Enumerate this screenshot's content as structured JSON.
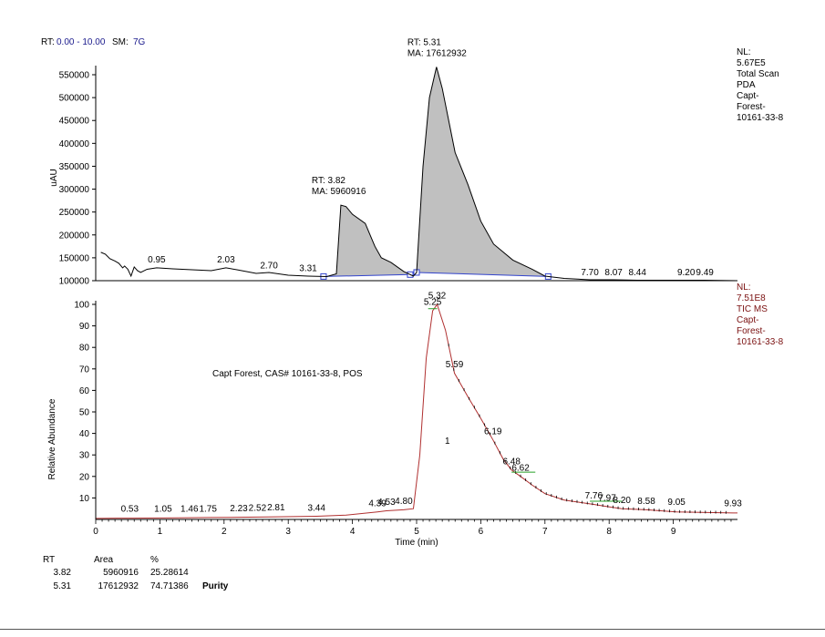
{
  "header": {
    "rt_label": "RT:",
    "rt_range": "0.00 - 10.00",
    "sm_label": "SM:",
    "sm_value": "7G"
  },
  "colors": {
    "range_text": "#1a1a8c",
    "baseline": "#3344cc",
    "peak_fill": "#c0c0c0",
    "tic_trace": "#b03030",
    "tic_text": "#7a1010",
    "hatch": "#28a028"
  },
  "chart_data": [
    {
      "type": "area",
      "title": "",
      "xlabel": "",
      "ylabel": "uAU",
      "xlim": [
        0,
        10
      ],
      "ylim": [
        100000,
        550000
      ],
      "y_ticks": [
        "100000",
        "150000",
        "200000",
        "250000",
        "300000",
        "350000",
        "400000",
        "450000",
        "500000",
        "550000"
      ],
      "legend": [
        "NL:",
        "5.67E5",
        "Total Scan",
        "PDA",
        "Capt-",
        "Forest-",
        "10161-33-8"
      ],
      "series": [
        {
          "values": [
            [
              0.08,
              162000
            ],
            [
              0.15,
              158000
            ],
            [
              0.22,
              148000
            ],
            [
              0.3,
              143000
            ],
            [
              0.36,
              138000
            ],
            [
              0.42,
              128000
            ],
            [
              0.45,
              132000
            ],
            [
              0.5,
              125000
            ],
            [
              0.55,
              110000
            ],
            [
              0.6,
              130000
            ],
            [
              0.65,
              122000
            ],
            [
              0.7,
              118000
            ],
            [
              0.8,
              125000
            ],
            [
              0.95,
              128000
            ],
            [
              1.2,
              126000
            ],
            [
              1.5,
              124000
            ],
            [
              1.8,
              122000
            ],
            [
              2.03,
              128000
            ],
            [
              2.2,
              124000
            ],
            [
              2.5,
              116000
            ],
            [
              2.7,
              118000
            ],
            [
              3.0,
              112000
            ],
            [
              3.31,
              110000
            ],
            [
              3.6,
              109000
            ],
            [
              3.75,
              115000
            ],
            [
              3.82,
              265000
            ],
            [
              3.9,
              262000
            ],
            [
              4.0,
              245000
            ],
            [
              4.2,
              225000
            ],
            [
              4.35,
              175000
            ],
            [
              4.45,
              150000
            ],
            [
              4.6,
              140000
            ],
            [
              4.8,
              120000
            ],
            [
              4.95,
              110000
            ],
            [
              5.0,
              118000
            ],
            [
              5.1,
              350000
            ],
            [
              5.2,
              500000
            ],
            [
              5.31,
              567000
            ],
            [
              5.4,
              520000
            ],
            [
              5.6,
              380000
            ],
            [
              5.8,
              310000
            ],
            [
              6.0,
              230000
            ],
            [
              6.2,
              180000
            ],
            [
              6.5,
              145000
            ],
            [
              6.8,
              125000
            ],
            [
              7.0,
              110000
            ],
            [
              7.3,
              105000
            ],
            [
              7.7,
              102000
            ],
            [
              8.07,
              102000
            ],
            [
              8.44,
              101000
            ],
            [
              9.2,
              101000
            ],
            [
              9.49,
              101000
            ],
            [
              10.0,
              100000
            ]
          ]
        }
      ],
      "peak_labels": [
        {
          "x": 0.95,
          "y": 132000,
          "text": "0.95"
        },
        {
          "x": 2.03,
          "y": 132000,
          "text": "2.03"
        },
        {
          "x": 2.7,
          "y": 119000,
          "text": "2.70"
        },
        {
          "x": 3.31,
          "y": 113000,
          "text": "3.31"
        },
        {
          "x": 7.7,
          "y": 104000,
          "text": "7.70"
        },
        {
          "x": 8.07,
          "y": 104000,
          "text": "8.07"
        },
        {
          "x": 8.44,
          "y": 104000,
          "text": "8.44"
        },
        {
          "x": 9.2,
          "y": 104000,
          "text": "9.20"
        },
        {
          "x": 9.49,
          "y": 104000,
          "text": "9.49"
        }
      ],
      "integrated_peaks": [
        {
          "start": 3.55,
          "end": 4.9,
          "apex": 3.82,
          "rt_label": "RT: 3.82",
          "ma_label": "MA: 5960916"
        },
        {
          "start": 5.0,
          "end": 7.05,
          "apex": 5.31,
          "rt_label": "RT: 5.31",
          "ma_label": "MA: 17612932"
        }
      ]
    },
    {
      "type": "line",
      "title": "Capt Forest, CAS# 10161-33-8, POS",
      "xlabel": "Time (min)",
      "ylabel": "Relative Abundance",
      "xlim": [
        0,
        10
      ],
      "ylim": [
        0,
        100
      ],
      "x_ticks": [
        "0",
        "1",
        "2",
        "3",
        "4",
        "5",
        "6",
        "7",
        "8",
        "9"
      ],
      "y_ticks": [
        "10",
        "20",
        "30",
        "40",
        "50",
        "60",
        "70",
        "80",
        "90",
        "100"
      ],
      "legend": [
        "NL:",
        "7.51E8",
        "TIC  MS",
        "Capt-",
        "Forest-",
        "10161-33-8"
      ],
      "annotation": "1",
      "series": [
        {
          "values": [
            [
              0,
              0.5
            ],
            [
              0.53,
              0.6
            ],
            [
              1.05,
              0.7
            ],
            [
              1.46,
              0.8
            ],
            [
              1.75,
              0.9
            ],
            [
              2.23,
              1.0
            ],
            [
              2.52,
              1.1
            ],
            [
              2.81,
              1.2
            ],
            [
              3.44,
              1.5
            ],
            [
              3.9,
              2.0
            ],
            [
              4.39,
              3.5
            ],
            [
              4.53,
              4.0
            ],
            [
              4.8,
              4.5
            ],
            [
              4.95,
              5.0
            ],
            [
              5.05,
              30
            ],
            [
              5.15,
              75
            ],
            [
              5.25,
              97
            ],
            [
              5.32,
              100
            ],
            [
              5.45,
              88
            ],
            [
              5.59,
              68
            ],
            [
              5.8,
              57
            ],
            [
              6.0,
              47
            ],
            [
              6.19,
              37
            ],
            [
              6.35,
              28
            ],
            [
              6.48,
              23
            ],
            [
              6.62,
              20
            ],
            [
              6.8,
              16
            ],
            [
              7.0,
              12
            ],
            [
              7.3,
              9
            ],
            [
              7.76,
              7
            ],
            [
              7.97,
              6
            ],
            [
              8.2,
              5
            ],
            [
              8.58,
              4.5
            ],
            [
              9.05,
              3.5
            ],
            [
              9.93,
              3.0
            ],
            [
              10.0,
              3.0
            ]
          ]
        }
      ],
      "peak_labels": [
        {
          "x": 0.53,
          "y": 2.0,
          "text": "0.53"
        },
        {
          "x": 1.05,
          "y": 2.0,
          "text": "1.05"
        },
        {
          "x": 1.46,
          "y": 2.0,
          "text": "1.46"
        },
        {
          "x": 1.75,
          "y": 2.0,
          "text": "1.75"
        },
        {
          "x": 2.23,
          "y": 2.2,
          "text": "2.23"
        },
        {
          "x": 2.52,
          "y": 2.3,
          "text": "2.52"
        },
        {
          "x": 2.81,
          "y": 2.5,
          "text": "2.81"
        },
        {
          "x": 3.44,
          "y": 2.3,
          "text": "3.44"
        },
        {
          "x": 4.39,
          "y": 4.5,
          "text": "4.39"
        },
        {
          "x": 4.53,
          "y": 5.0,
          "text": "4.53"
        },
        {
          "x": 4.8,
          "y": 5.5,
          "text": "4.80"
        },
        {
          "x": 5.25,
          "y": 98,
          "text": "5.25"
        },
        {
          "x": 5.32,
          "y": 101,
          "text": "5.32"
        },
        {
          "x": 5.59,
          "y": 69,
          "text": "5.59"
        },
        {
          "x": 6.19,
          "y": 38,
          "text": "6.19"
        },
        {
          "x": 6.48,
          "y": 24,
          "text": "6.48"
        },
        {
          "x": 6.62,
          "y": 21,
          "text": "6.62"
        },
        {
          "x": 7.76,
          "y": 8,
          "text": "7.76"
        },
        {
          "x": 7.97,
          "y": 7,
          "text": "7.97"
        },
        {
          "x": 8.2,
          "y": 6,
          "text": "8.20"
        },
        {
          "x": 8.58,
          "y": 5.5,
          "text": "8.58"
        },
        {
          "x": 9.05,
          "y": 5,
          "text": "9.05"
        },
        {
          "x": 9.93,
          "y": 4.5,
          "text": "9.93"
        }
      ]
    }
  ],
  "results_table": {
    "headers": [
      "RT",
      "Area",
      "%"
    ],
    "rows": [
      [
        "3.82",
        "5960916",
        "25.28614",
        ""
      ],
      [
        "5.31",
        "17612932",
        "74.71386",
        "Purity"
      ]
    ]
  }
}
